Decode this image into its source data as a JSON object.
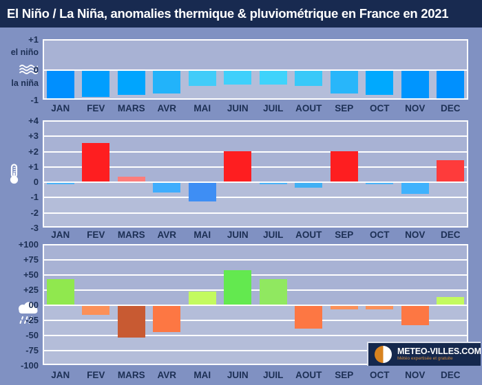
{
  "title": "El Niño / La Niña, anomalies thermique & pluviométrique en France en 2021",
  "logo": {
    "name": "METEO-VILLES.COM",
    "tagline": "Météo expertisée et gratuite"
  },
  "chart_data": [
    {
      "type": "bar",
      "name": "enso-index",
      "icon": "waves-icon",
      "label_above": "el niño",
      "label_below": "la niña",
      "categories": [
        "JAN",
        "FEV",
        "MARS",
        "AVR",
        "MAI",
        "JUIN",
        "JUIL",
        "AOUT",
        "SEP",
        "OCT",
        "NOV",
        "DEC"
      ],
      "values": [
        -0.95,
        -0.9,
        -0.85,
        -0.8,
        -0.55,
        -0.5,
        -0.5,
        -0.55,
        -0.8,
        -0.85,
        -0.95,
        -0.95
      ],
      "ylim": [
        -1,
        1
      ],
      "ytick_values": [
        1,
        0,
        -1
      ],
      "ytick_labels": [
        "+1",
        "0",
        "-1"
      ],
      "bar_colors": [
        "#008ffe",
        "#009efe",
        "#00a5fe",
        "#22b3fa",
        "#41ccf9",
        "#3fd0fb",
        "#3fd3fb",
        "#38c9f9",
        "#28b6fa",
        "#00a9fe",
        "#0095fe",
        "#0090fe"
      ],
      "dotted_bar_indexes": [
        4,
        7
      ],
      "grid": true,
      "legend": "none"
    },
    {
      "type": "bar",
      "name": "anomalie-thermique",
      "icon": "thermometer-icon",
      "categories": [
        "JAN",
        "FEV",
        "MARS",
        "AVR",
        "MAI",
        "JUIN",
        "JUIL",
        "AOUT",
        "SEP",
        "OCT",
        "NOV",
        "DEC"
      ],
      "values": [
        -0.1,
        2.5,
        0.3,
        -0.7,
        -1.3,
        2.0,
        -0.1,
        -0.4,
        2.0,
        -0.1,
        -0.8,
        1.4
      ],
      "ylim": [
        -3,
        4
      ],
      "ytick_values": [
        4,
        3,
        2,
        1,
        0,
        -1,
        -2,
        -3
      ],
      "ytick_labels": [
        "+4",
        "+3",
        "+2",
        "+1",
        "0",
        "-1",
        "-2",
        "-3"
      ],
      "bar_colors": [
        "#4ab2f8",
        "#fe1e20",
        "#fd7d7b",
        "#3fadfd",
        "#3e8ef4",
        "#fe1e20",
        "#4ab2f8",
        "#41b0f4",
        "#fe1e20",
        "#4ab2f8",
        "#3fb2fd",
        "#fe3b3b"
      ],
      "grid": true,
      "legend": "none"
    },
    {
      "type": "bar",
      "name": "anomalie-pluviometrique",
      "icon": "rain-cloud-icon",
      "categories": [
        "JAN",
        "FEV",
        "MARS",
        "AVR",
        "MAI",
        "JUIN",
        "JUIL",
        "AOUT",
        "SEP",
        "OCT",
        "NOV",
        "DEC"
      ],
      "values": [
        42,
        -17,
        -55,
        -45,
        22,
        57,
        42,
        -40,
        -8,
        -8,
        -34,
        13
      ],
      "ylim": [
        -100,
        100
      ],
      "ytick_values": [
        100,
        75,
        50,
        25,
        0,
        -25,
        -50,
        -75,
        -100
      ],
      "ytick_labels": [
        "+100",
        "+75",
        "+50",
        "+25",
        "00",
        "-25",
        "-50",
        "-75",
        "-100"
      ],
      "bar_colors": [
        "#90e84e",
        "#fb9058",
        "#c85a32",
        "#fd7743",
        "#c3fa5f",
        "#63e94f",
        "#90e860",
        "#fd7743",
        "#fb9058",
        "#fb9058",
        "#fd7743",
        "#c3fa5f"
      ],
      "grid": true,
      "legend": "none"
    }
  ]
}
